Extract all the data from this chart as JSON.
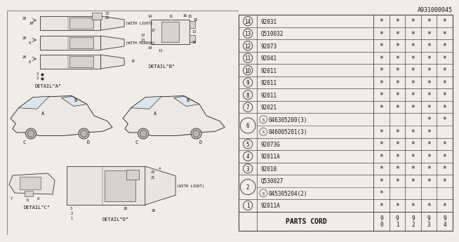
{
  "bg_color": "#f0ede8",
  "table_header": "PARTS CORD",
  "col_headers": [
    "9\n0",
    "9\n1",
    "9\n2",
    "9\n3",
    "9\n4"
  ],
  "rows": [
    {
      "num": "1",
      "part": "92011A",
      "marks": [
        true,
        true,
        true,
        true,
        true
      ],
      "sub": false
    },
    {
      "num": "2",
      "part": "045305204(2)",
      "marks": [
        true,
        false,
        false,
        false,
        false
      ],
      "sub": true
    },
    {
      "num": "2",
      "part": "Q530027",
      "marks": [
        true,
        true,
        true,
        true,
        true
      ],
      "sub": false,
      "skip_num": true
    },
    {
      "num": "3",
      "part": "92018",
      "marks": [
        true,
        true,
        true,
        true,
        true
      ],
      "sub": false
    },
    {
      "num": "4",
      "part": "92011A",
      "marks": [
        true,
        true,
        true,
        true,
        true
      ],
      "sub": false
    },
    {
      "num": "5",
      "part": "92073G",
      "marks": [
        true,
        true,
        true,
        true,
        true
      ],
      "sub": false
    },
    {
      "num": "6",
      "part": "046005201(3)",
      "marks": [
        true,
        true,
        true,
        true,
        false
      ],
      "sub": true
    },
    {
      "num": "6",
      "part": "046305200(3)",
      "marks": [
        false,
        false,
        false,
        true,
        true
      ],
      "sub": true,
      "skip_num": true
    },
    {
      "num": "7",
      "part": "92021",
      "marks": [
        true,
        true,
        true,
        true,
        true
      ],
      "sub": false
    },
    {
      "num": "8",
      "part": "92011",
      "marks": [
        true,
        true,
        true,
        true,
        true
      ],
      "sub": false
    },
    {
      "num": "9",
      "part": "92011",
      "marks": [
        true,
        true,
        true,
        true,
        true
      ],
      "sub": false
    },
    {
      "num": "10",
      "part": "92011",
      "marks": [
        true,
        true,
        true,
        true,
        true
      ],
      "sub": false
    },
    {
      "num": "11",
      "part": "92041",
      "marks": [
        true,
        true,
        true,
        true,
        true
      ],
      "sub": false
    },
    {
      "num": "12",
      "part": "92073",
      "marks": [
        true,
        true,
        true,
        true,
        true
      ],
      "sub": false
    },
    {
      "num": "13",
      "part": "Q510032",
      "marks": [
        true,
        true,
        true,
        true,
        true
      ],
      "sub": false
    },
    {
      "num": "14",
      "part": "92031",
      "marks": [
        true,
        true,
        true,
        true,
        true
      ],
      "sub": false
    }
  ],
  "footer_code": "A931000045",
  "line_color": "#444444",
  "text_color": "#111111",
  "mark_symbol": "*"
}
